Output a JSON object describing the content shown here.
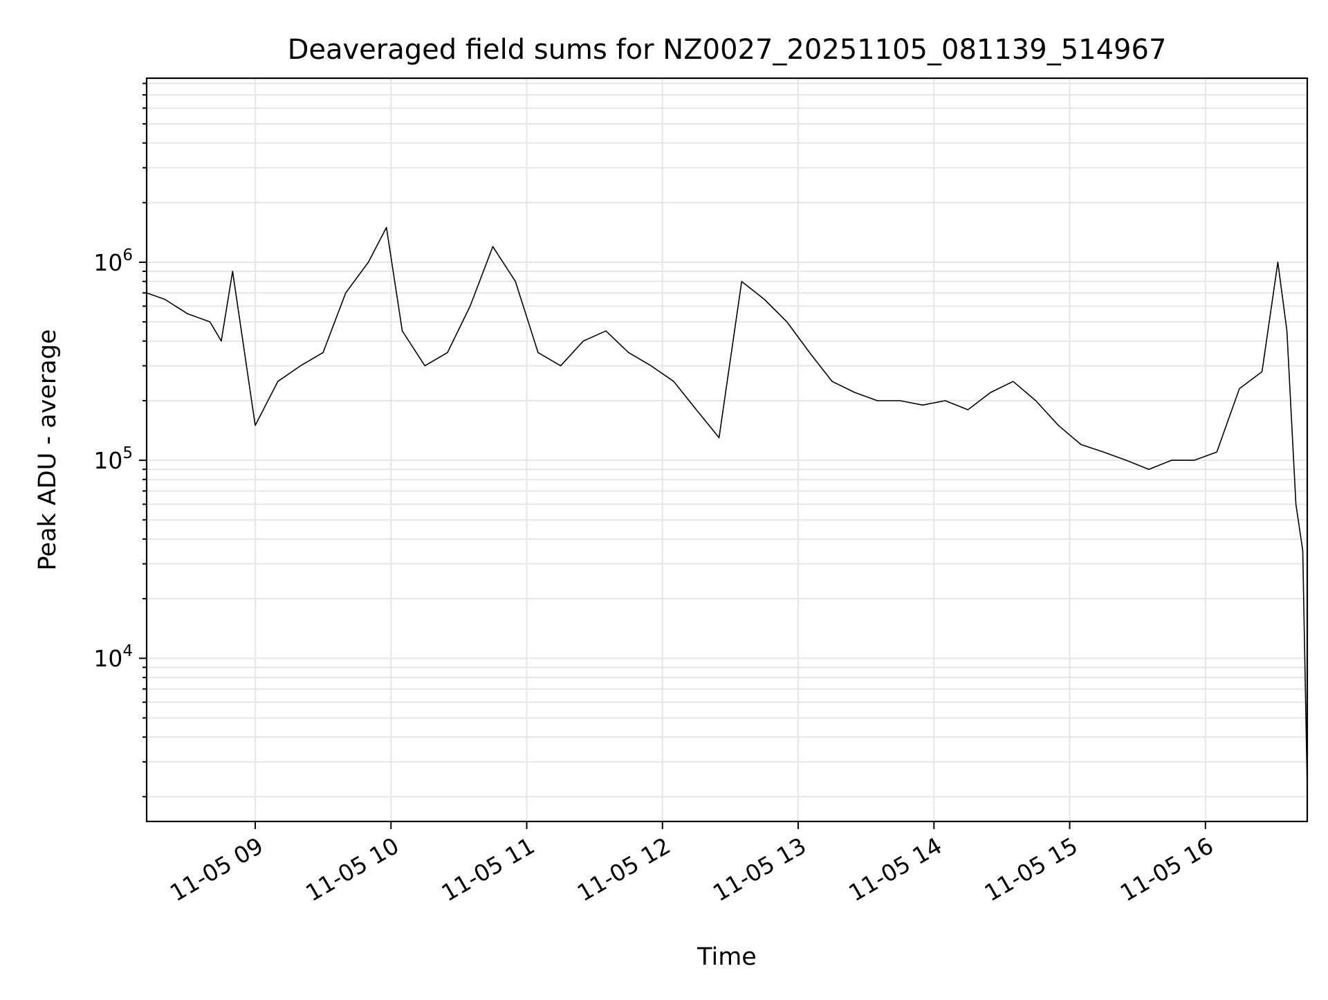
{
  "chart_data": {
    "type": "line",
    "title": "Deaveraged field sums for NZ0027_20251105_081139_514967",
    "xlabel": "Time",
    "ylabel": "Peak ADU - average",
    "y_scale": "log",
    "xlim": [
      "2025-11-05 08:12",
      "2025-11-05 16:45"
    ],
    "ylim": [
      1500,
      8500000
    ],
    "x_ticks": [
      {
        "value": "2025-11-05 09:00",
        "label": "11-05 09"
      },
      {
        "value": "2025-11-05 10:00",
        "label": "11-05 10"
      },
      {
        "value": "2025-11-05 11:00",
        "label": "11-05 11"
      },
      {
        "value": "2025-11-05 12:00",
        "label": "11-05 12"
      },
      {
        "value": "2025-11-05 13:00",
        "label": "11-05 13"
      },
      {
        "value": "2025-11-05 14:00",
        "label": "11-05 14"
      },
      {
        "value": "2025-11-05 15:00",
        "label": "11-05 15"
      },
      {
        "value": "2025-11-05 16:00",
        "label": "11-05 16"
      }
    ],
    "y_ticks": [
      {
        "value": 10000,
        "base": "10",
        "exp": "4"
      },
      {
        "value": 100000,
        "base": "10",
        "exp": "5"
      },
      {
        "value": 1000000,
        "base": "10",
        "exp": "6"
      }
    ],
    "grid": true,
    "line_color": "#000000",
    "grid_color": "#e6e6e6",
    "series": [
      {
        "x": [
          "2025-11-05 08:12",
          "2025-11-05 08:20",
          "2025-11-05 08:30",
          "2025-11-05 08:40",
          "2025-11-05 08:45",
          "2025-11-05 08:50",
          "2025-11-05 09:00",
          "2025-11-05 09:10",
          "2025-11-05 09:20",
          "2025-11-05 09:30",
          "2025-11-05 09:40",
          "2025-11-05 09:50",
          "2025-11-05 09:58",
          "2025-11-05 10:05",
          "2025-11-05 10:15",
          "2025-11-05 10:25",
          "2025-11-05 10:35",
          "2025-11-05 10:45",
          "2025-11-05 10:55",
          "2025-11-05 11:05",
          "2025-11-05 11:15",
          "2025-11-05 11:25",
          "2025-11-05 11:35",
          "2025-11-05 11:45",
          "2025-11-05 11:55",
          "2025-11-05 12:05",
          "2025-11-05 12:15",
          "2025-11-05 12:25",
          "2025-11-05 12:35",
          "2025-11-05 12:45",
          "2025-11-05 12:55",
          "2025-11-05 13:05",
          "2025-11-05 13:15",
          "2025-11-05 13:25",
          "2025-11-05 13:35",
          "2025-11-05 13:45",
          "2025-11-05 13:55",
          "2025-11-05 14:05",
          "2025-11-05 14:15",
          "2025-11-05 14:25",
          "2025-11-05 14:35",
          "2025-11-05 14:45",
          "2025-11-05 14:55",
          "2025-11-05 15:05",
          "2025-11-05 15:15",
          "2025-11-05 15:25",
          "2025-11-05 15:35",
          "2025-11-05 15:45",
          "2025-11-05 15:55",
          "2025-11-05 16:05",
          "2025-11-05 16:15",
          "2025-11-05 16:25",
          "2025-11-05 16:32",
          "2025-11-05 16:36",
          "2025-11-05 16:40",
          "2025-11-05 16:43",
          "2025-11-05 16:45"
        ],
        "values": [
          700000,
          650000,
          550000,
          500000,
          400000,
          900000,
          150000,
          250000,
          300000,
          350000,
          700000,
          1000000,
          1500000,
          450000,
          300000,
          350000,
          600000,
          1200000,
          800000,
          350000,
          300000,
          400000,
          450000,
          350000,
          300000,
          250000,
          180000,
          130000,
          800000,
          650000,
          500000,
          350000,
          250000,
          220000,
          200000,
          200000,
          190000,
          200000,
          180000,
          220000,
          250000,
          200000,
          150000,
          120000,
          110000,
          100000,
          90000,
          100000,
          100000,
          110000,
          230000,
          280000,
          1000000,
          450000,
          60000,
          35000,
          2200
        ]
      }
    ]
  }
}
